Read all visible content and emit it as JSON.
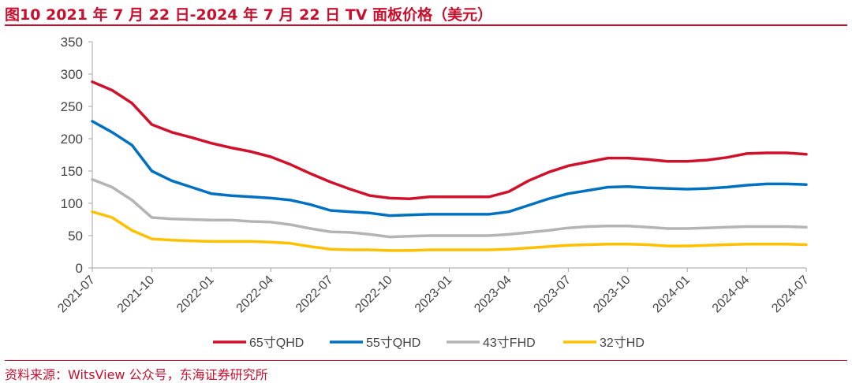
{
  "header": {
    "title": "图10  2021 年 7 月 22 日-2024 年 7 月 22 日 TV 面板价格（美元）"
  },
  "footer": {
    "source": "资料来源：WitsView 公众号，东海证券研究所"
  },
  "colors": {
    "accent": "#c8102e",
    "axis": "#a6a6a6"
  },
  "chart_data": {
    "type": "line",
    "title": "图10  2021 年 7 月 22 日-2024 年 7 月 22 日 TV 面板价格（美元）",
    "xlabel": "",
    "ylabel": "",
    "ylim": [
      0,
      350
    ],
    "yticks": [
      0,
      50,
      100,
      150,
      200,
      250,
      300,
      350
    ],
    "xlim": [
      "2021-07",
      "2024-07"
    ],
    "xticks": [
      "2021-07",
      "2021-10",
      "2022-01",
      "2022-04",
      "2022-07",
      "2022-10",
      "2023-01",
      "2023-04",
      "2023-07",
      "2023-10",
      "2024-01",
      "2024-04",
      "2024-07"
    ],
    "grid": false,
    "legend": "bottom",
    "x": [
      "2021-07",
      "2021-08",
      "2021-09",
      "2021-10",
      "2021-11",
      "2021-12",
      "2022-01",
      "2022-02",
      "2022-03",
      "2022-04",
      "2022-05",
      "2022-06",
      "2022-07",
      "2022-08",
      "2022-09",
      "2022-10",
      "2022-11",
      "2022-12",
      "2023-01",
      "2023-02",
      "2023-03",
      "2023-04",
      "2023-05",
      "2023-06",
      "2023-07",
      "2023-08",
      "2023-09",
      "2023-10",
      "2023-11",
      "2023-12",
      "2024-01",
      "2024-02",
      "2024-03",
      "2024-04",
      "2024-05",
      "2024-06",
      "2024-07"
    ],
    "series": [
      {
        "name": "65寸QHD",
        "color": "#d0112b",
        "values": [
          288,
          275,
          255,
          222,
          210,
          202,
          193,
          186,
          180,
          172,
          160,
          146,
          133,
          122,
          112,
          108,
          107,
          110,
          110,
          110,
          110,
          118,
          135,
          148,
          158,
          164,
          170,
          170,
          168,
          165,
          165,
          167,
          171,
          177,
          178,
          178,
          176
        ]
      },
      {
        "name": "55寸QHD",
        "color": "#0070c0",
        "values": [
          227,
          210,
          190,
          150,
          135,
          125,
          115,
          112,
          110,
          108,
          105,
          98,
          89,
          87,
          85,
          81,
          82,
          83,
          83,
          83,
          83,
          87,
          97,
          107,
          115,
          120,
          125,
          126,
          124,
          123,
          122,
          123,
          125,
          128,
          130,
          130,
          129
        ]
      },
      {
        "name": "43寸FHD",
        "color": "#b4b4b4",
        "values": [
          137,
          125,
          105,
          78,
          76,
          75,
          74,
          74,
          72,
          71,
          67,
          61,
          56,
          55,
          52,
          48,
          49,
          50,
          50,
          50,
          50,
          52,
          55,
          58,
          62,
          64,
          65,
          65,
          63,
          61,
          61,
          62,
          63,
          64,
          64,
          64,
          63
        ]
      },
      {
        "name": "32寸HD",
        "color": "#ffc000",
        "values": [
          87,
          78,
          58,
          45,
          43,
          42,
          41,
          41,
          41,
          40,
          38,
          33,
          29,
          28,
          28,
          27,
          27,
          28,
          28,
          28,
          28,
          29,
          31,
          33,
          35,
          36,
          37,
          37,
          36,
          34,
          34,
          35,
          36,
          37,
          37,
          37,
          36
        ]
      }
    ]
  }
}
